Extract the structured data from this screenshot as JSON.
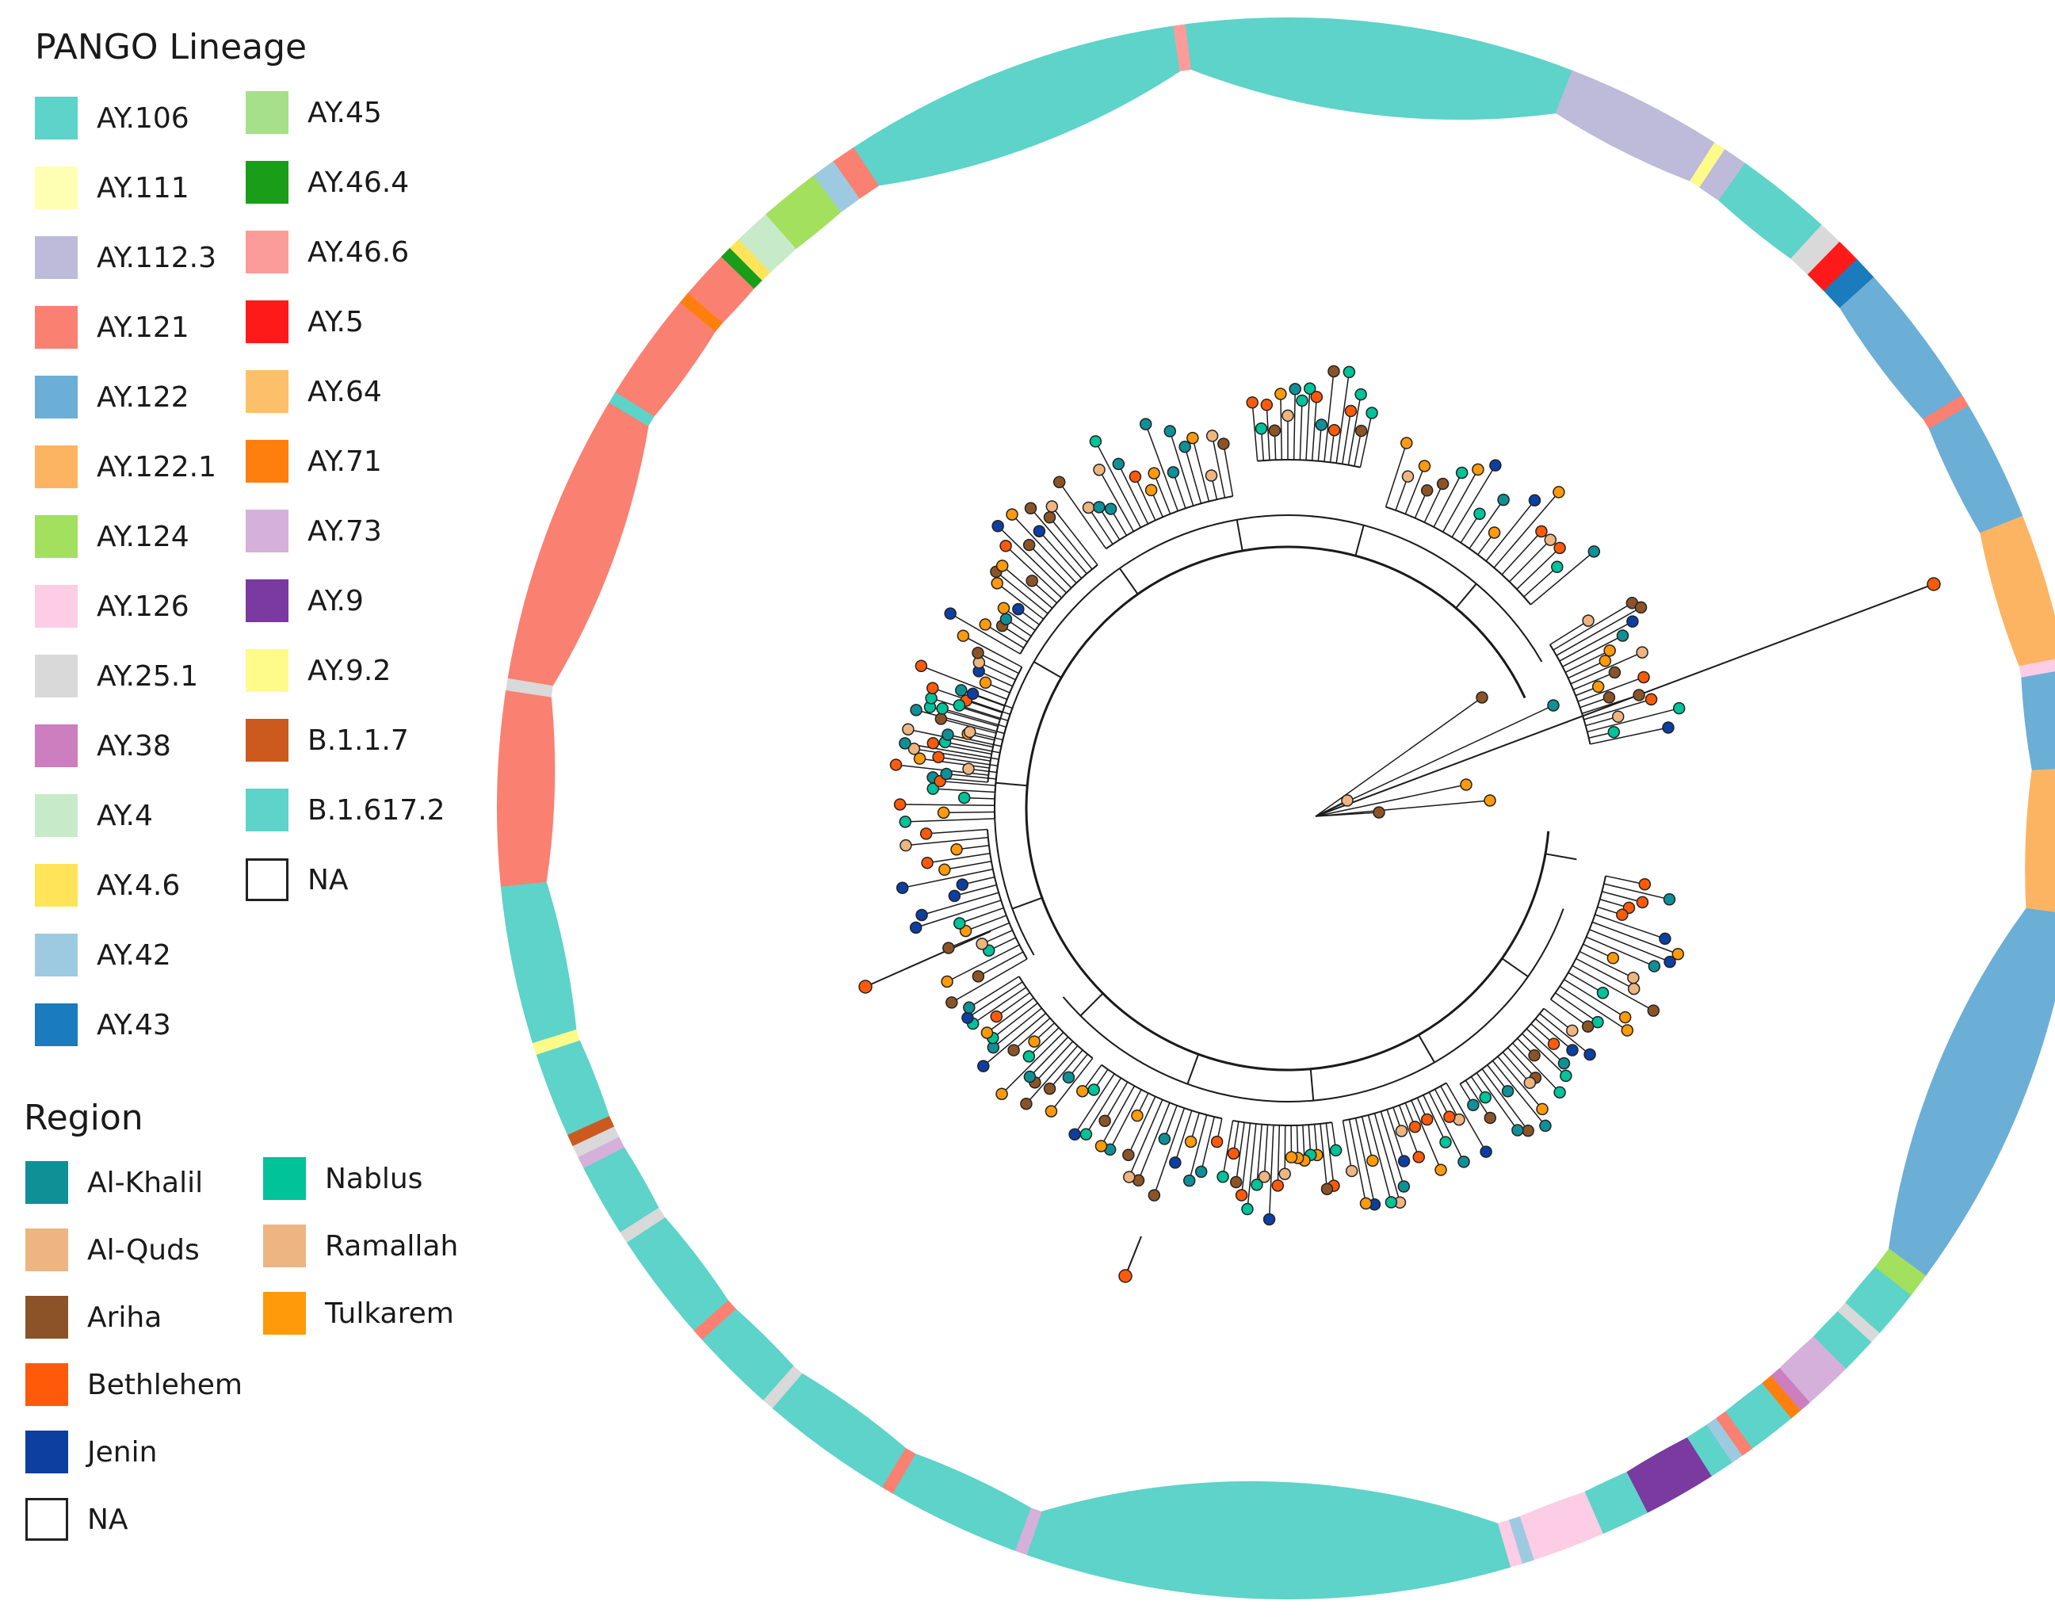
{
  "lineage_legend": {
    "title": "PANGO Lineage",
    "items": [
      {
        "label": "AY.106",
        "color": "#5dd3c9"
      },
      {
        "label": "AY.111",
        "color": "#ffffb3"
      },
      {
        "label": "AY.112.3",
        "color": "#bebada"
      },
      {
        "label": "AY.121",
        "color": "#fa8072"
      },
      {
        "label": "AY.122",
        "color": "#6baed6"
      },
      {
        "label": "AY.122.1",
        "color": "#fdb462"
      },
      {
        "label": "AY.124",
        "color": "#a3e05e"
      },
      {
        "label": "AY.126",
        "color": "#fccde5"
      },
      {
        "label": "AY.25.1",
        "color": "#d9d9d9"
      },
      {
        "label": "AY.38",
        "color": "#cc7ebf"
      },
      {
        "label": "AY.4",
        "color": "#c7ebc9"
      },
      {
        "label": "AY.4.6",
        "color": "#ffe45a"
      },
      {
        "label": "AY.42",
        "color": "#9ecae1"
      },
      {
        "label": "AY.43",
        "color": "#1a7bbd"
      },
      {
        "label": "AY.45",
        "color": "#a6e08a"
      },
      {
        "label": "AY.46.4",
        "color": "#1a9e1a"
      },
      {
        "label": "AY.46.6",
        "color": "#fc9c9a"
      },
      {
        "label": "AY.5",
        "color": "#ff1a1a"
      },
      {
        "label": "AY.64",
        "color": "#fdc06a"
      },
      {
        "label": "AY.71",
        "color": "#ff7f0e"
      },
      {
        "label": "AY.73",
        "color": "#d4b0da"
      },
      {
        "label": "AY.9",
        "color": "#7a3aa0"
      },
      {
        "label": "AY.9.2",
        "color": "#fffb8a"
      },
      {
        "label": "B.1.1.7",
        "color": "#cc5a1e"
      },
      {
        "label": "B.1.617.2",
        "color": "#5dd3c9"
      },
      {
        "label": "NA",
        "color": "none"
      }
    ]
  },
  "region_legend": {
    "title": "Region",
    "items": [
      {
        "label": "Al-Khalil",
        "color": "#0f9096"
      },
      {
        "label": "Al-Quds",
        "color": "#edb581"
      },
      {
        "label": "Ariha",
        "color": "#8b5428"
      },
      {
        "label": "Bethlehem",
        "color": "#ff5a0a"
      },
      {
        "label": "Jenin",
        "color": "#0c3fa0"
      },
      {
        "label": "NA",
        "color": "none"
      },
      {
        "label": "Nablus",
        "color": "#00c39a"
      },
      {
        "label": "Ramallah",
        "color": "#edb581"
      },
      {
        "label": "Tulkarem",
        "color": "#ff9a0a"
      }
    ]
  },
  "ring_segments": [
    {
      "lineage": "AY.122.1",
      "from": 0,
      "to": 12
    },
    {
      "lineage": "AY.122",
      "from": 12,
      "to": 44
    },
    {
      "lineage": "AY.124",
      "from": 44,
      "to": 46
    },
    {
      "lineage": "AY.106",
      "from": 46,
      "to": 50
    },
    {
      "lineage": "AY.25.1",
      "from": 50,
      "to": 51
    },
    {
      "lineage": "AY.106",
      "from": 51,
      "to": 54
    },
    {
      "lineage": "AY.73",
      "from": 54,
      "to": 58
    },
    {
      "lineage": "AY.38",
      "from": 58,
      "to": 59
    },
    {
      "lineage": "AY.71",
      "from": 59,
      "to": 60
    },
    {
      "lineage": "AY.106",
      "from": 60,
      "to": 64
    },
    {
      "lineage": "AY.121",
      "from": 64,
      "to": 65
    },
    {
      "lineage": "AY.42",
      "from": 65,
      "to": 66
    },
    {
      "lineage": "AY.106",
      "from": 66,
      "to": 68
    },
    {
      "lineage": "AY.9",
      "from": 68,
      "to": 74
    },
    {
      "lineage": "AY.106",
      "from": 74,
      "to": 78
    },
    {
      "lineage": "AY.126",
      "from": 78,
      "to": 84
    },
    {
      "lineage": "AY.42",
      "from": 84,
      "to": 85
    },
    {
      "lineage": "AY.126",
      "from": 85,
      "to": 86
    },
    {
      "lineage": "AY.106",
      "from": 86,
      "to": 126
    },
    {
      "lineage": "AY.73",
      "from": 126,
      "to": 127
    },
    {
      "lineage": "AY.106",
      "from": 127,
      "to": 138
    },
    {
      "lineage": "AY.121",
      "from": 138,
      "to": 139
    },
    {
      "lineage": "AY.106",
      "from": 139,
      "to": 150
    },
    {
      "lineage": "AY.25.1",
      "from": 150,
      "to": 151
    },
    {
      "lineage": "AY.106",
      "from": 151,
      "to": 158
    },
    {
      "lineage": "AY.121",
      "from": 158,
      "to": 159
    },
    {
      "lineage": "AY.106",
      "from": 159,
      "to": 168
    },
    {
      "lineage": "AY.25.1",
      "from": 168,
      "to": 169
    },
    {
      "lineage": "AY.106",
      "from": 169,
      "to": 175
    },
    {
      "lineage": "AY.73",
      "from": 175,
      "to": 176
    },
    {
      "lineage": "AY.25.1",
      "from": 176,
      "to": 177
    },
    {
      "lineage": "B.1.1.7",
      "from": 177,
      "to": 178
    },
    {
      "lineage": "AY.106",
      "from": 178,
      "to": 185
    },
    {
      "lineage": "AY.9.2",
      "from": 185,
      "to": 186
    },
    {
      "lineage": "AY.106",
      "from": 186,
      "to": 199
    },
    {
      "lineage": "AY.121",
      "from": 199,
      "to": 215
    },
    {
      "lineage": "AY.25.1",
      "from": 215,
      "to": 216
    },
    {
      "lineage": "AY.121",
      "from": 216,
      "to": 240
    },
    {
      "lineage": "AY.106",
      "from": 240,
      "to": 241
    },
    {
      "lineage": "AY.121",
      "from": 241,
      "to": 250
    },
    {
      "lineage": "AY.71",
      "from": 250,
      "to": 251
    },
    {
      "lineage": "AY.121",
      "from": 251,
      "to": 255
    },
    {
      "lineage": "AY.46.4",
      "from": 255,
      "to": 256
    },
    {
      "lineage": "AY.4.6",
      "from": 256,
      "to": 257
    },
    {
      "lineage": "AY.4",
      "from": 257,
      "to": 260
    },
    {
      "lineage": "AY.124",
      "from": 260,
      "to": 265
    },
    {
      "lineage": "AY.42",
      "from": 265,
      "to": 267
    },
    {
      "lineage": "AY.121",
      "from": 267,
      "to": 269
    },
    {
      "lineage": "AY.106",
      "from": 269,
      "to": 297
    },
    {
      "lineage": "AY.46.6",
      "from": 297,
      "to": 298
    },
    {
      "lineage": "AY.106",
      "from": 298,
      "to": 330
    },
    {
      "lineage": "AY.112.3",
      "from": 330,
      "to": 343
    },
    {
      "lineage": "AY.9.2",
      "from": 343,
      "to": 344
    },
    {
      "lineage": "AY.112.3",
      "from": 344,
      "to": 346
    },
    {
      "lineage": "AY.106",
      "from": 346,
      "to": 354
    },
    {
      "lineage": "AY.25.1",
      "from": 354,
      "to": 356
    },
    {
      "lineage": "AY.5",
      "from": 356,
      "to": 358
    },
    {
      "lineage": "AY.43",
      "from": 358,
      "to": 360
    },
    {
      "lineage": "AY.122",
      "from": 0,
      "to": 0
    },
    {
      "lineage": "AY.122",
      "from": 360,
      "to": 372
    },
    {
      "lineage": "AY.121",
      "from": 372,
      "to": 373
    },
    {
      "lineage": "AY.122",
      "from": 373,
      "to": 383
    },
    {
      "lineage": "AY.122.1",
      "from": 383,
      "to": 395
    },
    {
      "lineage": "AY.126",
      "from": 395,
      "to": 396
    },
    {
      "lineage": "AY.122",
      "from": 396,
      "to": 404
    }
  ]
}
